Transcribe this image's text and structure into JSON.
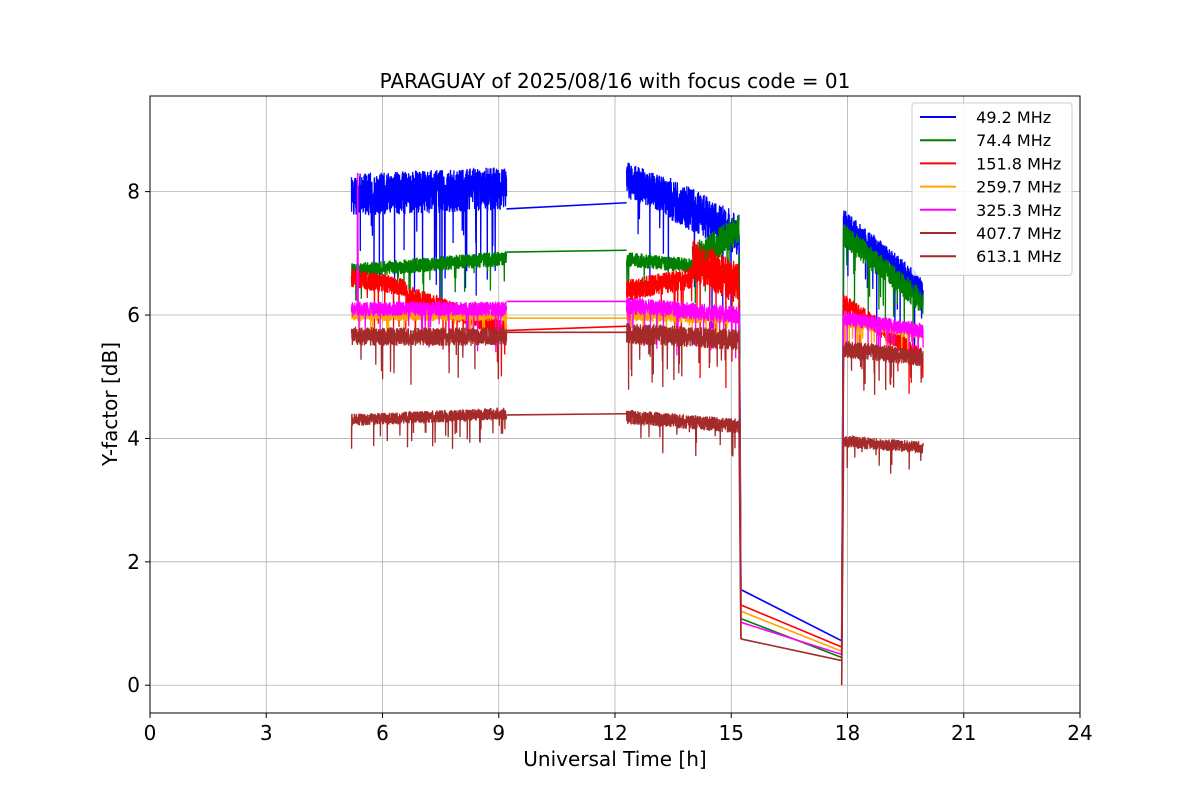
{
  "chart_data": {
    "type": "line",
    "title": "PARAGUAY of 2025/08/16 with focus code = 01",
    "xlabel": "Universal Time [h]",
    "ylabel": "Y-factor [dB]",
    "xlim": [
      0,
      24
    ],
    "ylim": [
      -0.45,
      9.55
    ],
    "xticks": [
      0,
      3,
      6,
      9,
      12,
      15,
      18,
      21,
      24
    ],
    "xtick_labels": [
      "0",
      "3",
      "6",
      "9",
      "12",
      "15",
      "18",
      "21",
      "24"
    ],
    "yticks": [
      0,
      2,
      4,
      6,
      8
    ],
    "ytick_labels": [
      "0",
      "2",
      "4",
      "6",
      "8"
    ],
    "grid": true,
    "legend_position": "top-right",
    "series": [
      {
        "name": "  49.2 MHz",
        "color": "#0000ff",
        "segments": [
          {
            "x0": 5.2,
            "x1": 9.2,
            "base_start": 7.95,
            "base_end": 8.05,
            "noise": 0.35,
            "seed": 11
          },
          {
            "x0": 12.3,
            "x1": 13.4,
            "base_start": 8.2,
            "base_end": 7.9,
            "noise": 0.3,
            "seed": 12
          },
          {
            "x0": 13.4,
            "x1": 15.2,
            "base_start": 7.9,
            "base_end": 7.3,
            "noise": 0.35,
            "seed": 13
          },
          {
            "x0": 17.9,
            "x1": 19.95,
            "base_start": 7.5,
            "base_end": 6.4,
            "noise": 0.22,
            "seed": 14
          }
        ],
        "jumps": [
          {
            "x0": 9.2,
            "y0": 7.72,
            "x1": 12.3,
            "y1": 7.82
          },
          {
            "x0": 15.2,
            "y0": 7.3,
            "x1": 15.25,
            "y1": 1.55
          },
          {
            "x0": 15.25,
            "y0": 1.55,
            "x1": 17.85,
            "y1": 0.72
          },
          {
            "x0": 17.85,
            "y0": 0.72,
            "x1": 17.9,
            "y1": 7.6
          }
        ]
      },
      {
        "name": "  74.4 MHz",
        "color": "#008000",
        "segments": [
          {
            "x0": 5.2,
            "x1": 9.2,
            "base_start": 6.72,
            "base_end": 6.92,
            "noise": 0.12,
            "seed": 21
          },
          {
            "x0": 12.3,
            "x1": 14.0,
            "base_start": 6.9,
            "base_end": 6.8,
            "noise": 0.12,
            "seed": 22
          },
          {
            "x0": 14.0,
            "x1": 15.2,
            "base_start": 6.9,
            "base_end": 7.4,
            "noise": 0.25,
            "seed": 23
          },
          {
            "x0": 17.9,
            "x1": 19.95,
            "base_start": 7.3,
            "base_end": 6.2,
            "noise": 0.2,
            "seed": 24
          }
        ],
        "jumps": [
          {
            "x0": 9.2,
            "y0": 7.02,
            "x1": 12.3,
            "y1": 7.05
          },
          {
            "x0": 15.2,
            "y0": 7.0,
            "x1": 15.25,
            "y1": 1.08
          },
          {
            "x0": 15.25,
            "y0": 1.08,
            "x1": 17.85,
            "y1": 0.45
          },
          {
            "x0": 17.85,
            "y0": 0.45,
            "x1": 17.9,
            "y1": 7.4
          }
        ]
      },
      {
        "name": "  151.8 MHz",
        "color": "#ff0000",
        "segments": [
          {
            "x0": 5.2,
            "x1": 6.6,
            "base_start": 6.6,
            "base_end": 6.45,
            "noise": 0.15,
            "seed": 31
          },
          {
            "x0": 6.6,
            "x1": 9.2,
            "base_start": 6.35,
            "base_end": 5.75,
            "noise": 0.15,
            "seed": 32
          },
          {
            "x0": 12.3,
            "x1": 14.0,
            "base_start": 6.4,
            "base_end": 6.6,
            "noise": 0.18,
            "seed": 33
          },
          {
            "x0": 14.0,
            "x1": 15.2,
            "base_start": 6.9,
            "base_end": 6.5,
            "noise": 0.35,
            "seed": 34
          },
          {
            "x0": 17.9,
            "x1": 19.95,
            "base_start": 6.2,
            "base_end": 5.3,
            "noise": 0.15,
            "seed": 35
          }
        ],
        "jumps": [
          {
            "x0": 9.2,
            "y0": 5.75,
            "x1": 12.3,
            "y1": 5.82
          },
          {
            "x0": 15.2,
            "y0": 6.2,
            "x1": 15.25,
            "y1": 1.3
          },
          {
            "x0": 15.25,
            "y0": 1.3,
            "x1": 17.85,
            "y1": 0.62
          },
          {
            "x0": 17.85,
            "y0": 0.62,
            "x1": 17.9,
            "y1": 6.3
          }
        ]
      },
      {
        "name": "  259.7 MHz",
        "color": "#ffa500",
        "segments": [
          {
            "x0": 5.2,
            "x1": 9.2,
            "base_start": 6.0,
            "base_end": 6.0,
            "noise": 0.1,
            "seed": 41
          },
          {
            "x0": 12.3,
            "x1": 15.2,
            "base_start": 6.0,
            "base_end": 5.95,
            "noise": 0.1,
            "seed": 42
          },
          {
            "x0": 17.9,
            "x1": 19.95,
            "base_start": 5.9,
            "base_end": 5.7,
            "noise": 0.1,
            "seed": 43
          }
        ],
        "jumps": [
          {
            "x0": 9.2,
            "y0": 5.95,
            "x1": 12.3,
            "y1": 5.95
          },
          {
            "x0": 15.2,
            "y0": 5.9,
            "x1": 15.25,
            "y1": 1.2
          },
          {
            "x0": 15.25,
            "y0": 1.2,
            "x1": 17.85,
            "y1": 0.55
          },
          {
            "x0": 17.85,
            "y0": 0.55,
            "x1": 17.9,
            "y1": 5.9
          }
        ]
      },
      {
        "name": "  325.3 MHz",
        "color": "#ff00ff",
        "segments": [
          {
            "x0": 5.2,
            "x1": 9.2,
            "base_start": 6.1,
            "base_end": 6.1,
            "noise": 0.12,
            "seed": 51
          },
          {
            "x0": 12.3,
            "x1": 15.2,
            "base_start": 6.15,
            "base_end": 6.0,
            "noise": 0.14,
            "seed": 52
          },
          {
            "x0": 17.9,
            "x1": 19.95,
            "base_start": 5.95,
            "base_end": 5.75,
            "noise": 0.12,
            "seed": 53
          }
        ],
        "jumps": [
          {
            "x0": 9.2,
            "y0": 6.22,
            "x1": 12.3,
            "y1": 6.22
          },
          {
            "x0": 5.35,
            "y0": 6.2,
            "x1": 5.36,
            "y1": 8.3
          },
          {
            "x0": 5.36,
            "y0": 8.3,
            "x1": 5.37,
            "y1": 6.1
          },
          {
            "x0": 15.2,
            "y0": 6.0,
            "x1": 15.25,
            "y1": 1.02
          },
          {
            "x0": 15.25,
            "y0": 1.02,
            "x1": 17.85,
            "y1": 0.5
          },
          {
            "x0": 17.85,
            "y0": 0.5,
            "x1": 17.9,
            "y1": 6.0
          }
        ]
      },
      {
        "name": "  407.7 MHz",
        "color": "#a52a2a",
        "segments": [
          {
            "x0": 5.2,
            "x1": 9.2,
            "base_start": 5.65,
            "base_end": 5.65,
            "noise": 0.15,
            "seed": 61
          },
          {
            "x0": 12.3,
            "x1": 15.2,
            "base_start": 5.7,
            "base_end": 5.6,
            "noise": 0.17,
            "seed": 62
          },
          {
            "x0": 17.9,
            "x1": 19.95,
            "base_start": 5.45,
            "base_end": 5.3,
            "noise": 0.14,
            "seed": 63
          }
        ],
        "jumps": [
          {
            "x0": 9.2,
            "y0": 5.72,
            "x1": 12.3,
            "y1": 5.72
          },
          {
            "x0": 15.2,
            "y0": 5.6,
            "x1": 15.25,
            "y1": 0.75
          },
          {
            "x0": 15.25,
            "y0": 0.75,
            "x1": 17.85,
            "y1": 0.4
          },
          {
            "x0": 17.85,
            "y0": 0.4,
            "x1": 17.9,
            "y1": 5.5
          }
        ]
      },
      {
        "name": "  613.1 MHz",
        "color": "#a52a2a",
        "segments": [
          {
            "x0": 5.2,
            "x1": 9.2,
            "base_start": 4.3,
            "base_end": 4.4,
            "noise": 0.1,
            "seed": 71
          },
          {
            "x0": 12.3,
            "x1": 15.2,
            "base_start": 4.35,
            "base_end": 4.2,
            "noise": 0.12,
            "seed": 72
          },
          {
            "x0": 17.9,
            "x1": 19.95,
            "base_start": 3.95,
            "base_end": 3.85,
            "noise": 0.1,
            "seed": 73
          }
        ],
        "jumps": [
          {
            "x0": 9.2,
            "y0": 4.38,
            "x1": 12.3,
            "y1": 4.4
          },
          {
            "x0": 15.2,
            "y0": 4.2,
            "x1": 15.25,
            "y1": 0.75
          },
          {
            "x0": 17.85,
            "y0": 0.0,
            "x1": 17.9,
            "y1": 4.0
          }
        ]
      }
    ]
  }
}
